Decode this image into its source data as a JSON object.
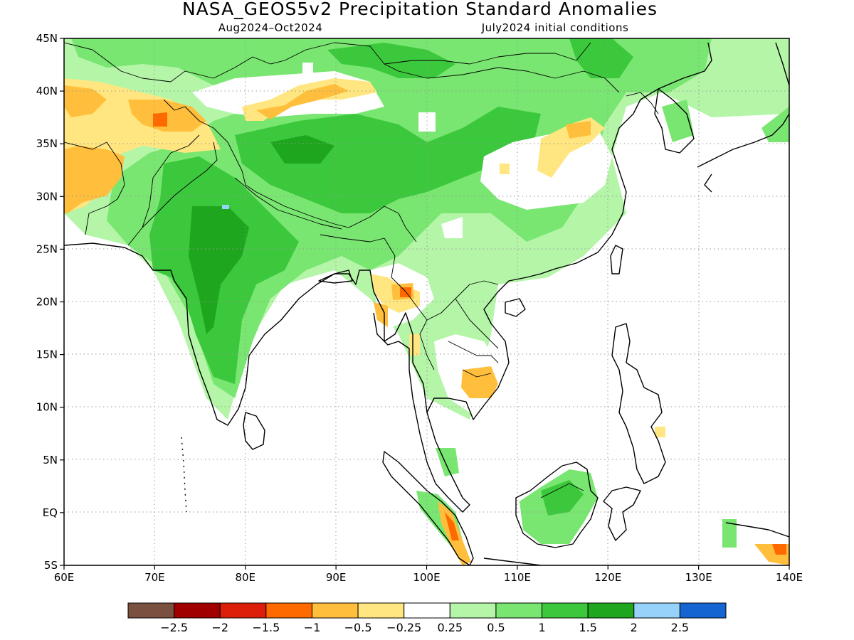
{
  "title": "NASA_GEOS5v2 Precipitation Standard Anomalies",
  "subtitle_left": "Aug2024–Oct2024",
  "subtitle_right": "July2024 initial conditions",
  "map": {
    "lon_range": [
      60,
      140
    ],
    "lat_range": [
      -5,
      45
    ],
    "lon_ticks": [
      {
        "value": 60,
        "label": "60E"
      },
      {
        "value": 70,
        "label": "70E"
      },
      {
        "value": 80,
        "label": "80E"
      },
      {
        "value": 90,
        "label": "90E"
      },
      {
        "value": 100,
        "label": "100E"
      },
      {
        "value": 110,
        "label": "110E"
      },
      {
        "value": 120,
        "label": "120E"
      },
      {
        "value": 130,
        "label": "130E"
      },
      {
        "value": 140,
        "label": "140E"
      }
    ],
    "lat_ticks": [
      {
        "value": 45,
        "label": "45N"
      },
      {
        "value": 40,
        "label": "40N"
      },
      {
        "value": 35,
        "label": "35N"
      },
      {
        "value": 30,
        "label": "30N"
      },
      {
        "value": 25,
        "label": "25N"
      },
      {
        "value": 20,
        "label": "20N"
      },
      {
        "value": 15,
        "label": "15N"
      },
      {
        "value": 10,
        "label": "10N"
      },
      {
        "value": 5,
        "label": "5N"
      },
      {
        "value": 0,
        "label": "EQ"
      },
      {
        "value": -5,
        "label": "5S"
      }
    ],
    "grid": true
  },
  "colorbar": {
    "colors": [
      "#7a5040",
      "#a00000",
      "#dd1f0a",
      "#ff6a00",
      "#ffbf3c",
      "#ffe680",
      "#ffffff",
      "#b4f5a8",
      "#78e670",
      "#3cc83c",
      "#1ea61e",
      "#96d2fa",
      "#1464d2"
    ],
    "labels": [
      "−2.5",
      "−2",
      "−1.5",
      "−1",
      "−0.5",
      "−0.25",
      "0.25",
      "0.5",
      "1",
      "1.5",
      "2",
      "2.5"
    ]
  }
}
